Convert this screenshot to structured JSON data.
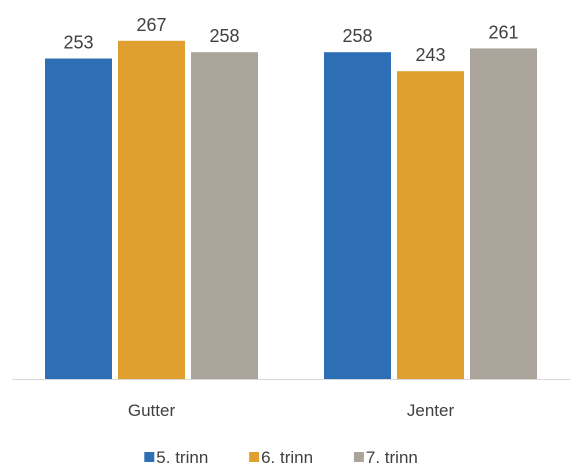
{
  "chart_data": {
    "type": "bar",
    "categories": [
      "Gutter",
      "Jenter"
    ],
    "series": [
      {
        "name": "5. trinn",
        "values": [
          253,
          258
        ],
        "color": "#2e6eb5"
      },
      {
        "name": "6. trinn",
        "values": [
          267,
          243
        ],
        "color": "#e0a030"
      },
      {
        "name": "7. trinn",
        "values": [
          258,
          261
        ],
        "color": "#aba49b"
      }
    ],
    "ylim": [
      0,
      300
    ],
    "grid": false,
    "legend_position": "bottom",
    "data_labels": true,
    "title": "",
    "xlabel": "",
    "ylabel": ""
  }
}
